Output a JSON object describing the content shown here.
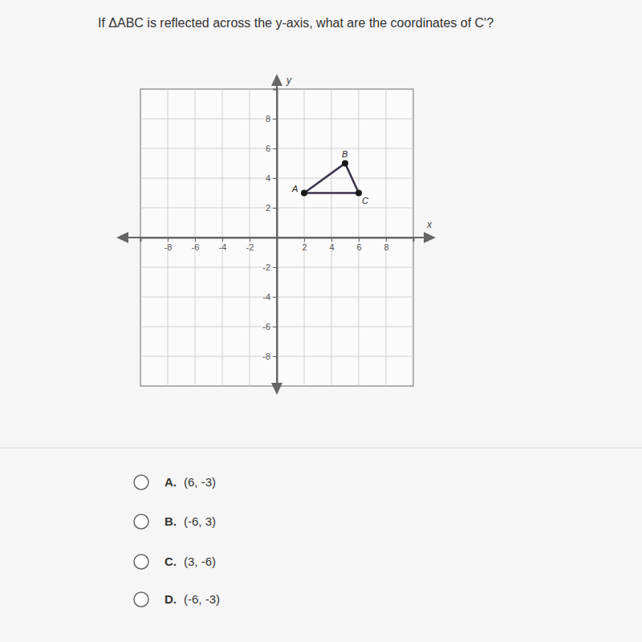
{
  "question": "If ΔABC is reflected across the y-axis, what are the coordinates of C'?",
  "chart_data": {
    "type": "line",
    "xlabel": "x",
    "ylabel": "y",
    "x": [
      2,
      5,
      6
    ],
    "values": [
      3,
      5,
      3
    ],
    "point_labels": [
      "A",
      "B",
      "C"
    ],
    "color": "#3b2f4a",
    "marker": "circle",
    "xlim": [
      -10,
      10
    ],
    "ylim": [
      -10,
      10
    ],
    "xticks": [
      -8,
      -6,
      -4,
      -2,
      2,
      4,
      6,
      8
    ],
    "yticks": [
      -8,
      -6,
      -4,
      -2,
      2,
      4,
      6,
      8
    ],
    "grid": true
  },
  "options": [
    {
      "letter": "A.",
      "text": "(6, -3)"
    },
    {
      "letter": "B.",
      "text": "(-6, 3)"
    },
    {
      "letter": "C.",
      "text": "(3, -6)"
    },
    {
      "letter": "D.",
      "text": "(-6, -3)"
    }
  ]
}
